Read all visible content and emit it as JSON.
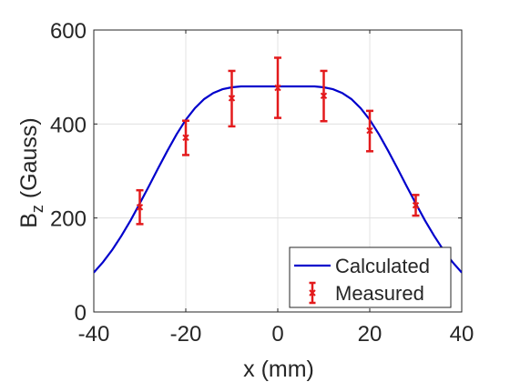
{
  "chart_data": {
    "type": "line",
    "xlabel": "x (mm)",
    "ylabel": {
      "base": "B",
      "subscript": "z",
      "suffix": " (Gauss)"
    },
    "xlim": [
      -40,
      40
    ],
    "ylim": [
      0,
      600
    ],
    "xticks": [
      -40,
      -20,
      0,
      20,
      40
    ],
    "yticks": [
      0,
      200,
      400,
      600
    ],
    "grid": true,
    "legend_position": "bottom-right",
    "series": [
      {
        "name": "Calculated",
        "kind": "line",
        "color": "#0000cc",
        "x": [
          -40,
          -38,
          -36,
          -34,
          -32,
          -30,
          -28,
          -26,
          -24,
          -22,
          -20,
          -18,
          -16,
          -14,
          -12,
          -10,
          -8,
          -6,
          -4,
          -2,
          0,
          2,
          4,
          6,
          8,
          10,
          12,
          14,
          16,
          18,
          20,
          22,
          24,
          26,
          28,
          30,
          32,
          34,
          36,
          38,
          40
        ],
        "y": [
          84,
          106,
          132,
          162,
          195,
          231,
          268,
          306,
          343,
          378,
          409,
          434,
          453,
          466,
          474,
          478,
          480,
          480,
          480,
          480,
          480,
          480,
          480,
          480,
          480,
          478,
          474,
          466,
          453,
          434,
          409,
          378,
          343,
          306,
          268,
          231,
          195,
          162,
          132,
          106,
          84
        ]
      },
      {
        "name": "Measured",
        "kind": "errorbar",
        "color": "#e31a1c",
        "x": [
          -30,
          -20,
          -10,
          0,
          10,
          20,
          30
        ],
        "y": [
          223,
          371,
          455,
          477,
          460,
          386,
          227
        ],
        "lower": [
          187,
          334,
          395,
          413,
          406,
          342,
          205
        ],
        "upper": [
          259,
          407,
          513,
          541,
          513,
          428,
          249
        ]
      }
    ]
  }
}
